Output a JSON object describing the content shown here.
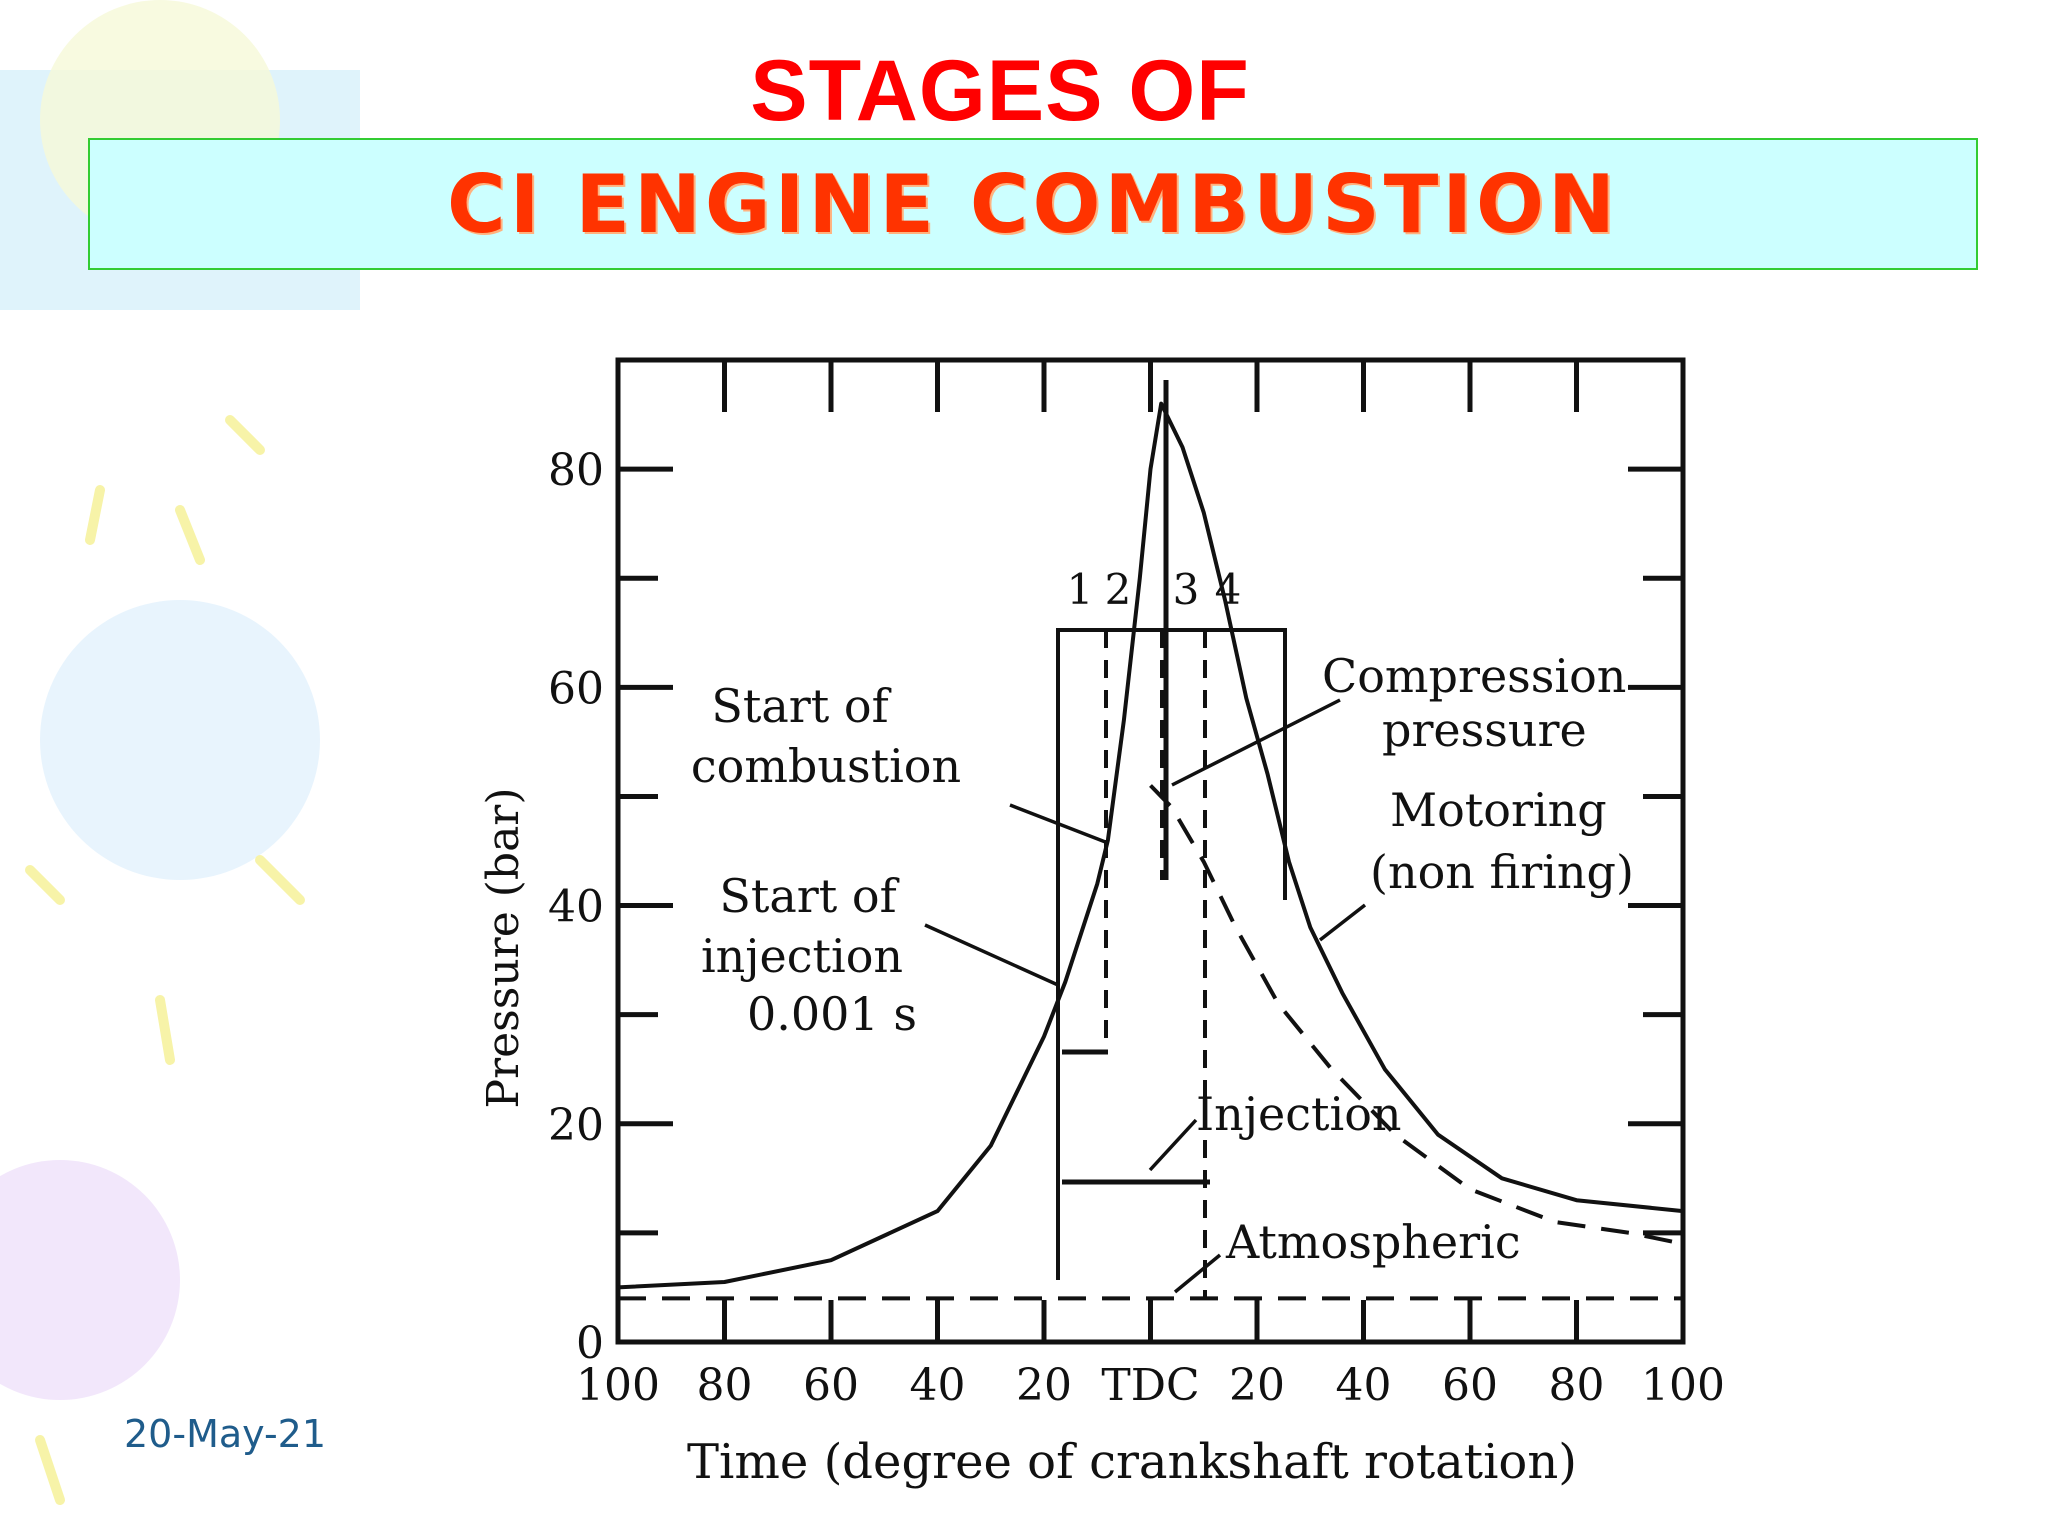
{
  "slide": {
    "title_line1": "STAGES OF",
    "title_line2": "CI ENGINE COMBUSTION",
    "date": "20-May-21"
  },
  "colors": {
    "title": "#ff0000",
    "subtitle": "#ff3300",
    "title_box_fill": "#ccffff",
    "title_box_border": "#33cc33",
    "date": "#1f5c8b"
  },
  "chart_data": {
    "type": "line",
    "xlabel": "Time (degree of crankshaft rotation)",
    "ylabel": "Pressure (bar)",
    "x_tick_labels": [
      "100",
      "80",
      "60",
      "40",
      "20",
      "TDC",
      "20",
      "40",
      "60",
      "80",
      "100"
    ],
    "x_tick_values": [
      -100,
      -80,
      -60,
      -40,
      -20,
      0,
      20,
      40,
      60,
      80,
      100
    ],
    "y_tick_labels": [
      "0",
      "20",
      "40",
      "60",
      "80"
    ],
    "y_tick_values": [
      0,
      20,
      40,
      60,
      80
    ],
    "xlim": [
      -100,
      100
    ],
    "ylim": [
      0,
      90
    ],
    "grid": false,
    "stage_labels": [
      "1",
      "2",
      "3",
      "4"
    ],
    "series": [
      {
        "style": "solid",
        "points": [
          [
            -100,
            5
          ],
          [
            -80,
            5.5
          ],
          [
            -60,
            7.5
          ],
          [
            -40,
            12
          ],
          [
            -30,
            18
          ],
          [
            -20,
            28
          ],
          [
            -16,
            33
          ],
          [
            -10,
            42
          ],
          [
            -8,
            46
          ],
          [
            -5,
            57
          ],
          [
            -2,
            70
          ],
          [
            0,
            80
          ],
          [
            2,
            86
          ],
          [
            6,
            82
          ],
          [
            10,
            76
          ],
          [
            14,
            68
          ],
          [
            18,
            59
          ],
          [
            22,
            52
          ],
          [
            26,
            44
          ],
          [
            30,
            38
          ],
          [
            36,
            32
          ],
          [
            44,
            25
          ],
          [
            54,
            19
          ],
          [
            66,
            15
          ],
          [
            80,
            13
          ],
          [
            100,
            12
          ]
        ]
      },
      {
        "style": "dashed",
        "points": [
          [
            0,
            51
          ],
          [
            4,
            49
          ],
          [
            10,
            44
          ],
          [
            16,
            38
          ],
          [
            24,
            31
          ],
          [
            34,
            25
          ],
          [
            46,
            19
          ],
          [
            60,
            14
          ],
          [
            76,
            11
          ],
          [
            90,
            10
          ],
          [
            100,
            9
          ]
        ]
      },
      {
        "style": "dashed",
        "points": [
          [
            -100,
            4
          ],
          [
            100,
            4
          ]
        ]
      }
    ],
    "annotations": [
      {
        "text_lines": [
          "Start of",
          "combustion"
        ]
      },
      {
        "text_lines": [
          "Start of",
          "injection",
          "0.001 s"
        ]
      },
      {
        "text_lines": [
          "Compression",
          "pressure"
        ]
      },
      {
        "text_lines": [
          "Motoring",
          "(non firing)"
        ]
      },
      {
        "text_lines": [
          "Injection"
        ]
      },
      {
        "text_lines": [
          "Atmospheric"
        ]
      }
    ]
  }
}
